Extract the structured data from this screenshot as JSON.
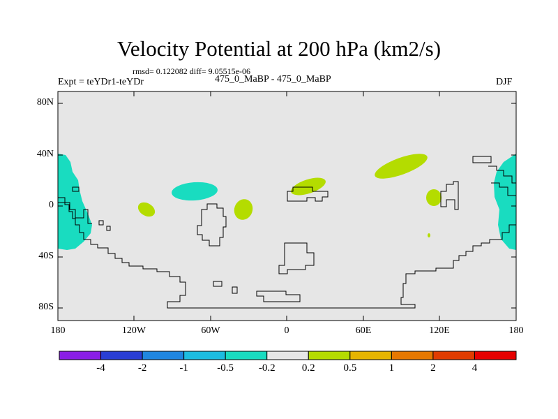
{
  "title": "Velocity Potential at 200 hPa (km2/s)",
  "stats_line": "rmsd= 0.122082 diff= 9.05515e-06",
  "left_label": "Expt = teYDr1-teYDr",
  "center_label": "475_0_MaBP - 475_0_MaBP",
  "right_label": "DJF",
  "lat_labels": [
    "80N",
    "40N",
    "0",
    "40S",
    "80S"
  ],
  "lon_labels": [
    "180",
    "120W",
    "60W",
    "0",
    "60E",
    "120E",
    "180"
  ],
  "colorbar": {
    "tick_labels": [
      "-4",
      "-2",
      "-1",
      "-0.5",
      "-0.2",
      "0.2",
      "0.5",
      "1",
      "2",
      "4"
    ],
    "colors": [
      "#8a1ee6",
      "#2a3ed4",
      "#1f86e0",
      "#1cbce0",
      "#19dcc0",
      "#e6e6e6",
      "#b4dc00",
      "#e6b400",
      "#e67800",
      "#e03c00",
      "#e60000"
    ]
  },
  "colors": {
    "ocean_fill": "#e6e6e6",
    "negative_fill": "#19dcc0",
    "positive_fill": "#b4dc00"
  }
}
